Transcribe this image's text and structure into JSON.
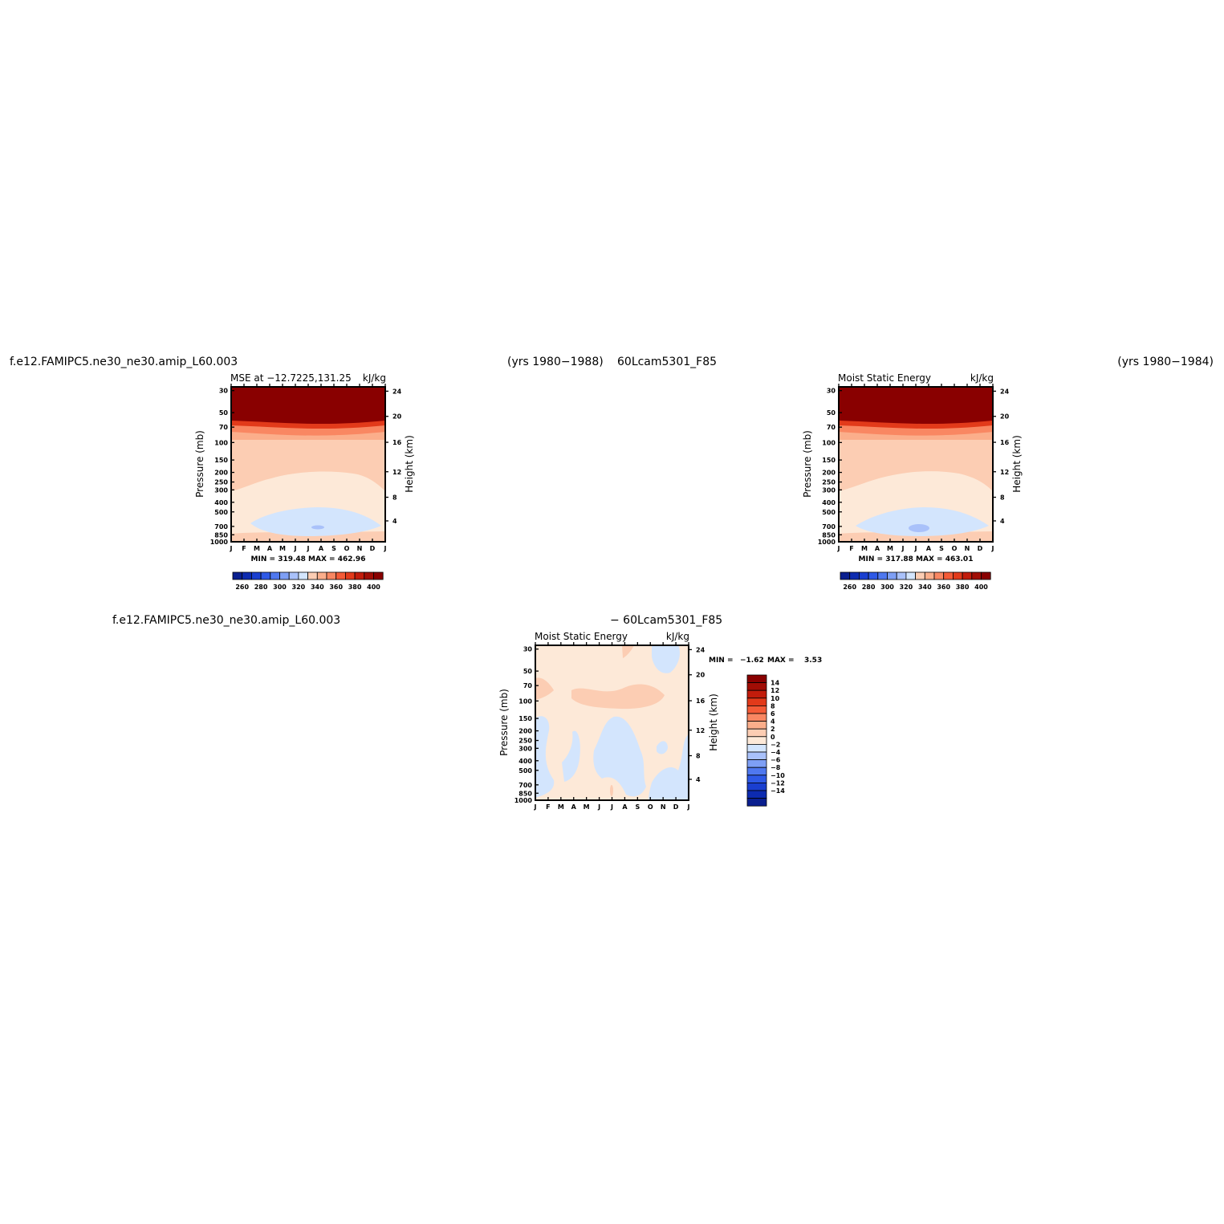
{
  "header": {
    "left_case": "f.e12.FAMIPC5.ne30_ne30.amip_L60.003",
    "left_years": "(yrs 1980−1988)",
    "right_case": "60Lcam5301_F85",
    "right_years": "(yrs 1980−1984)",
    "diff_left_case": "f.e12.FAMIPC5.ne30_ne30.amip_L60.003",
    "diff_right_case": "− 60Lcam5301_F85"
  },
  "colors": {
    "blue_palette": [
      "#0a1f8f",
      "#0d2bb0",
      "#1a3fd0",
      "#2e59e6",
      "#4f78ef",
      "#7e9ff5",
      "#a9c1fa",
      "#d3e5fd"
    ],
    "red_palette": [
      "#fde9d8",
      "#fccdb3",
      "#fbae8b",
      "#f98762",
      "#f45b37",
      "#e23a1a",
      "#c21c0b",
      "#a10d05",
      "#890000"
    ]
  },
  "chart_data": [
    {
      "type": "heatmap",
      "panel": "model",
      "title": "MSE at −12.7225,131.25",
      "units": "kJ/kg",
      "ylabel": "Pressure (mb)",
      "ylabel_right": "Height (km)",
      "x_ticks": [
        "J",
        "F",
        "M",
        "A",
        "M",
        "J",
        "J",
        "A",
        "S",
        "O",
        "N",
        "D",
        "J"
      ],
      "y_ticks": [
        "30",
        "50",
        "70",
        "100",
        "150",
        "200",
        "250",
        "300",
        "400",
        "500",
        "700",
        "850",
        "1000"
      ],
      "y_ticks_right": [
        "24",
        "20",
        "16",
        "12",
        "8",
        "4"
      ],
      "stats": "MIN = 319.48 MAX = 462.96",
      "min": 319.48,
      "max": 462.96,
      "colorbar": {
        "orientation": "horizontal",
        "labels": [
          "260",
          "280",
          "300",
          "320",
          "340",
          "360",
          "380",
          "400"
        ]
      },
      "regions": [
        "MSE > 400 above ~60 mb",
        "340–360 kJ/kg 100–250 mb",
        "320–340 kJ/kg minimum near 700 mb, JJA"
      ]
    },
    {
      "type": "heatmap",
      "panel": "control",
      "title": "Moist Static Energy",
      "units": "kJ/kg",
      "ylabel": "Pressure (mb)",
      "ylabel_right": "Height (km)",
      "x_ticks": [
        "J",
        "F",
        "M",
        "A",
        "M",
        "J",
        "J",
        "A",
        "S",
        "O",
        "N",
        "D",
        "J"
      ],
      "y_ticks": [
        "30",
        "50",
        "70",
        "100",
        "150",
        "200",
        "250",
        "300",
        "400",
        "500",
        "700",
        "850",
        "1000"
      ],
      "y_ticks_right": [
        "24",
        "20",
        "16",
        "12",
        "8",
        "4"
      ],
      "stats": "MIN = 317.88 MAX = 463.01",
      "min": 317.88,
      "max": 463.01,
      "colorbar": {
        "orientation": "horizontal",
        "labels": [
          "260",
          "280",
          "300",
          "320",
          "340",
          "360",
          "380",
          "400"
        ]
      }
    },
    {
      "type": "heatmap",
      "panel": "difference",
      "title": "Moist Static Energy",
      "units": "kJ/kg",
      "ylabel": "Pressure (mb)",
      "ylabel_right": "Height (km)",
      "x_ticks": [
        "J",
        "F",
        "M",
        "A",
        "M",
        "J",
        "J",
        "A",
        "S",
        "O",
        "N",
        "D",
        "J"
      ],
      "y_ticks": [
        "30",
        "50",
        "70",
        "100",
        "150",
        "200",
        "250",
        "300",
        "400",
        "500",
        "700",
        "850",
        "1000"
      ],
      "y_ticks_right": [
        "24",
        "20",
        "16",
        "12",
        "8",
        "4"
      ],
      "stats_min_label": "MIN =",
      "stats_min": "−1.62",
      "stats_max_label": "MAX =",
      "stats_max": "3.53",
      "min": -1.62,
      "max": 3.53,
      "colorbar": {
        "orientation": "vertical",
        "labels": [
          "14",
          "12",
          "10",
          "8",
          "6",
          "4",
          "2",
          "0",
          "−2",
          "−4",
          "−6",
          "−8",
          "−10",
          "−12",
          "−14"
        ]
      }
    }
  ]
}
